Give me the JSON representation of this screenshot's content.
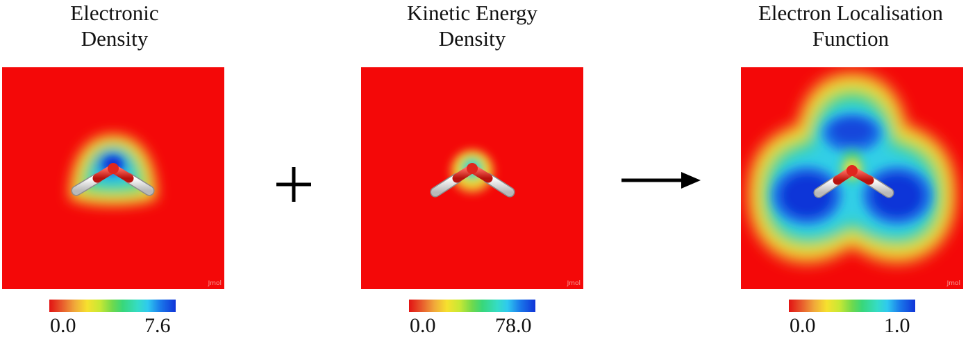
{
  "panels": [
    {
      "title_line1": "Electronic",
      "title_line2": "Density",
      "watermark": "Jmol",
      "scale_min": "0.0",
      "scale_max": "7.6"
    },
    {
      "title_line1": "Kinetic Energy",
      "title_line2": "Density",
      "watermark": "Jmol",
      "scale_min": "0.0",
      "scale_max": "78.0"
    },
    {
      "title_line1": "Electron Localisation",
      "title_line2": "Function",
      "watermark": "Jmol",
      "scale_min": "0.0",
      "scale_max": "1.0"
    }
  ],
  "operators": {
    "plus": "+",
    "arrow": "→"
  },
  "colors": {
    "background_low": "#f40808",
    "mid_yellow": "#f6e12e",
    "mid_green": "#38d77a",
    "mid_cyan": "#2fc9ef",
    "high_blue": "#1034d8",
    "oxygen": "#e8231b",
    "hydrogen": "#f2f2f2"
  }
}
